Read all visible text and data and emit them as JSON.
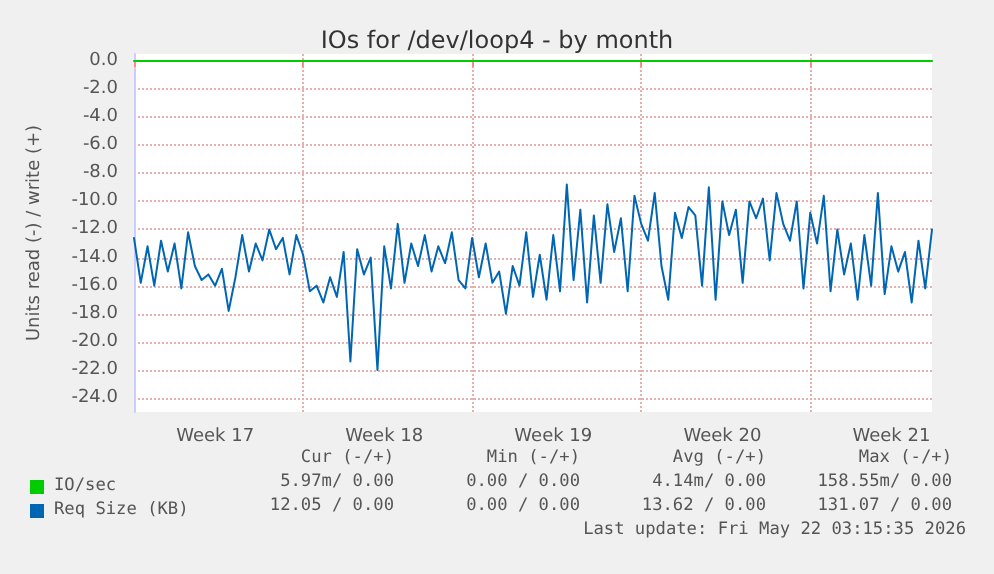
{
  "chart_data": {
    "type": "line",
    "title": "IOs for /dev/loop4 - by month",
    "ylabel": "Units read (-) / write (+)",
    "categories": [
      null,
      null,
      null,
      null,
      null,
      null,
      null,
      null,
      null,
      null,
      null,
      null,
      "Week 17",
      null,
      null,
      null,
      null,
      null,
      null,
      null,
      null,
      null,
      null,
      null,
      null,
      null,
      null,
      null,
      null,
      null,
      null,
      null,
      null,
      null,
      null,
      null,
      null,
      "Week 18",
      null,
      null,
      null,
      null,
      null,
      null,
      null,
      null,
      null,
      null,
      null,
      null,
      null,
      null,
      null,
      null,
      null,
      null,
      null,
      null,
      null,
      null,
      null,
      null,
      "Week 19",
      null,
      null,
      null,
      null,
      null,
      null,
      null,
      null,
      null,
      null,
      null,
      null,
      null,
      null,
      null,
      null,
      null,
      null,
      null,
      null,
      null,
      null,
      null,
      null,
      "Week 20",
      null,
      null,
      null,
      null,
      null,
      null,
      null,
      null,
      null,
      null,
      null,
      null,
      null,
      null,
      null,
      null,
      null,
      null,
      null,
      null,
      null,
      null,
      null,
      null,
      "Week 21",
      null,
      null,
      null,
      null,
      null,
      null
    ],
    "ylim": [
      -25,
      0.5
    ],
    "yticks": [
      {
        "value": 0,
        "label": "0.0"
      },
      {
        "value": -2,
        "label": "-2.0"
      },
      {
        "value": -4,
        "label": "-4.0"
      },
      {
        "value": -6,
        "label": "-6.0"
      },
      {
        "value": -8,
        "label": "-8.0"
      },
      {
        "value": -10,
        "label": "-10.0"
      },
      {
        "value": -12,
        "label": "-12.0"
      },
      {
        "value": -14,
        "label": "-14.0"
      },
      {
        "value": -16,
        "label": "-16.0"
      },
      {
        "value": -18,
        "label": "-18.0"
      },
      {
        "value": -20,
        "label": "-20.0"
      },
      {
        "value": -22,
        "label": "-22.0"
      },
      {
        "value": -24,
        "label": "-24.0"
      }
    ],
    "grid": true,
    "legend": "bottom",
    "marker": "none",
    "line_style": "solid",
    "series": [
      {
        "name": "IO/sec",
        "color": "#00cc00",
        "values": [
          0,
          0,
          0,
          0,
          0,
          0,
          0,
          0,
          0,
          0,
          0,
          0,
          0,
          0,
          0,
          0,
          0,
          0,
          0,
          0,
          0,
          0,
          0,
          0,
          0,
          0,
          0,
          0,
          0,
          0,
          0,
          0,
          0,
          0,
          0,
          0,
          0,
          0,
          0,
          0,
          0,
          0,
          0,
          0,
          0,
          0,
          0,
          0,
          0,
          0,
          0,
          0,
          0,
          0,
          0,
          0,
          0,
          0,
          0,
          0,
          0,
          0,
          0,
          0,
          0,
          0,
          0,
          0,
          0,
          0,
          0,
          0,
          0,
          0,
          0,
          0,
          0,
          0,
          0,
          0,
          0,
          0,
          0,
          0,
          0,
          0,
          0,
          0,
          0,
          0,
          0,
          0,
          0,
          0,
          0,
          0,
          0,
          0,
          0,
          0,
          0,
          0,
          0,
          0,
          0,
          0,
          0,
          0,
          0,
          0,
          0,
          0,
          0,
          0,
          0,
          0,
          0,
          0,
          0
        ]
      },
      {
        "name": "Req Size (KB)",
        "color": "#0066b3",
        "values": [
          -12.6,
          -15.8,
          -13.2,
          -16.0,
          -12.8,
          -15.0,
          -13.0,
          -16.2,
          -12.2,
          -14.6,
          -15.6,
          -15.2,
          -16.0,
          -14.8,
          -17.8,
          -15.4,
          -12.4,
          -15.0,
          -13.0,
          -14.2,
          -12.0,
          -13.4,
          -12.6,
          -15.2,
          -12.4,
          -13.8,
          -16.4,
          -16.0,
          -17.2,
          -15.4,
          -16.8,
          -13.6,
          -21.4,
          -13.4,
          -15.2,
          -14.0,
          -22.0,
          -13.2,
          -16.2,
          -11.6,
          -15.8,
          -13.0,
          -14.6,
          -12.4,
          -15.0,
          -13.2,
          -14.4,
          -12.2,
          -15.6,
          -16.2,
          -12.6,
          -15.4,
          -13.0,
          -15.8,
          -15.0,
          -18.0,
          -14.6,
          -16.0,
          -12.2,
          -16.8,
          -13.8,
          -17.0,
          -12.4,
          -16.4,
          -8.8,
          -15.6,
          -10.6,
          -17.2,
          -11.0,
          -15.8,
          -10.2,
          -13.6,
          -11.2,
          -16.4,
          -9.6,
          -11.6,
          -12.8,
          -9.4,
          -14.6,
          -17.0,
          -10.8,
          -12.6,
          -10.4,
          -11.0,
          -16.0,
          -9.0,
          -17.0,
          -10.0,
          -12.4,
          -10.6,
          -15.8,
          -10.0,
          -11.2,
          -9.8,
          -14.2,
          -9.4,
          -11.6,
          -12.8,
          -10.0,
          -16.2,
          -10.8,
          -13.0,
          -9.6,
          -16.4,
          -12.0,
          -15.2,
          -13.0,
          -17.0,
          -12.4,
          -16.0,
          -9.4,
          -16.6,
          -13.2,
          -15.0,
          -13.6,
          -17.2,
          -12.8,
          -16.2,
          -12.0
        ]
      }
    ],
    "annotations": [
      "Cur (-/+)",
      "Min (-/+)",
      "Avg (-/+)",
      "Max (-/+)",
      "5.97m/ 0.00",
      "0.00 / 0.00",
      "4.14m/ 0.00",
      "158.55m/ 0.00",
      "12.05 / 0.00",
      "0.00 / 0.00",
      "13.62 / 0.00",
      "131.07 / 0.00",
      "Last update: Fri May 22 03:15:35 2026"
    ]
  }
}
